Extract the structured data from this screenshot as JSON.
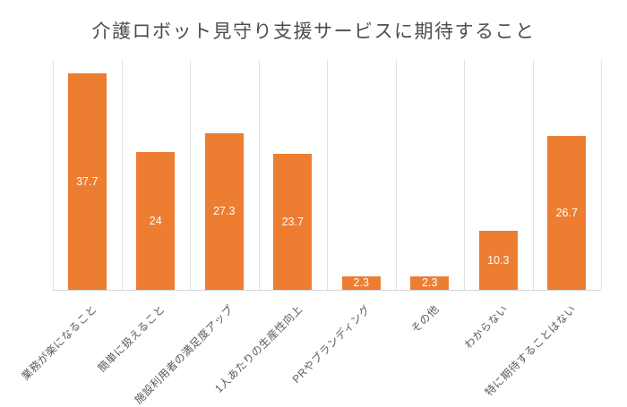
{
  "title": "介護ロボット見守り支援サービスに期待すること",
  "colors": {
    "bar": "#ED7D31",
    "value_text": "#FFFFFF",
    "gridline": "#E2E2E2",
    "axis_line": "#D6D6D6",
    "title_text": "#4D4D4D",
    "category_text": "#5A5A5A",
    "background": "#FFFFFF"
  },
  "chart_data": {
    "type": "bar",
    "title": "介護ロボット見守り支援サービスに期待すること",
    "categories": [
      "業務が楽になること",
      "簡単に扱えること",
      "施設利用者の満足度アップ",
      "1人あたりの生産性向上",
      "PRやブランディング",
      "その他",
      "わからない",
      "特に期待することはない"
    ],
    "values": [
      37.7,
      24,
      27.3,
      23.7,
      2.3,
      2.3,
      10.3,
      26.7
    ],
    "value_labels": [
      "37.7",
      "24",
      "27.3",
      "23.7",
      "2.3",
      "2.3",
      "10.3",
      "26.7"
    ],
    "xlabel": "",
    "ylabel": "",
    "ylim": [
      0,
      40
    ],
    "grid": "vertical band lines",
    "legend": "none",
    "bar_label_position": "center-inside",
    "x_tick_rotation": 45
  }
}
